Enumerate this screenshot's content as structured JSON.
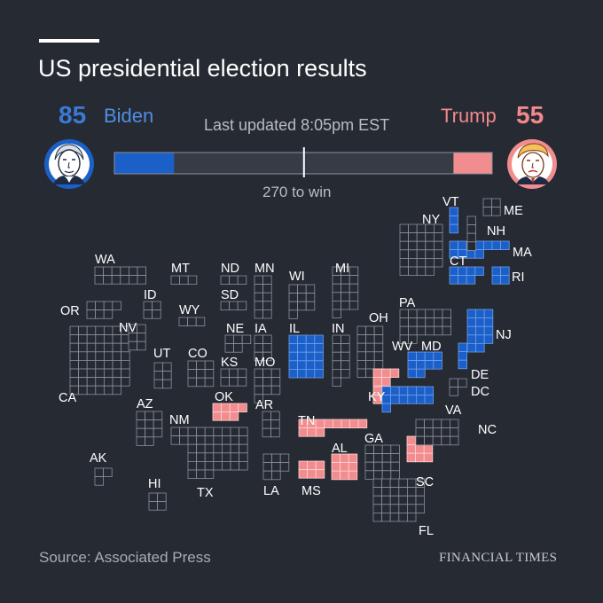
{
  "header": {
    "title": "US presidential election results",
    "last_updated": "Last updated 8:05pm EST",
    "to_win_label": "270 to win"
  },
  "candidates": {
    "biden": {
      "name": "Biden",
      "votes": 85,
      "color": "#1b5fc8",
      "avatar": "biden-portrait-icon"
    },
    "trump": {
      "name": "Trump",
      "votes": 55,
      "color": "#f28d8f",
      "avatar": "trump-portrait-icon"
    }
  },
  "footer": {
    "source": "Source: Associated Press",
    "brand": "FINANCIAL TIMES"
  },
  "chart_data": {
    "type": "grid-map",
    "total_votes": 538,
    "to_win": 270,
    "biden_total": 85,
    "trump_total": 55,
    "colors": {
      "biden": "#1b5fc8",
      "trump": "#f28d8f",
      "pending": "#262a33",
      "outline": "#8b909b",
      "bar_bg": "#363b46"
    },
    "states": [
      {
        "abbr": "WA",
        "votes": 12,
        "result": "pending"
      },
      {
        "abbr": "OR",
        "votes": 7,
        "result": "pending"
      },
      {
        "abbr": "CA",
        "votes": 55,
        "result": "pending"
      },
      {
        "abbr": "NV",
        "votes": 6,
        "result": "pending"
      },
      {
        "abbr": "ID",
        "votes": 4,
        "result": "pending"
      },
      {
        "abbr": "MT",
        "votes": 3,
        "result": "pending"
      },
      {
        "abbr": "WY",
        "votes": 3,
        "result": "pending"
      },
      {
        "abbr": "UT",
        "votes": 6,
        "result": "pending"
      },
      {
        "abbr": "CO",
        "votes": 9,
        "result": "pending"
      },
      {
        "abbr": "AZ",
        "votes": 11,
        "result": "pending"
      },
      {
        "abbr": "NM",
        "votes": 5,
        "result": "pending"
      },
      {
        "abbr": "ND",
        "votes": 3,
        "result": "pending"
      },
      {
        "abbr": "SD",
        "votes": 3,
        "result": "pending"
      },
      {
        "abbr": "NE",
        "votes": 5,
        "result": "pending"
      },
      {
        "abbr": "KS",
        "votes": 6,
        "result": "pending"
      },
      {
        "abbr": "OK",
        "votes": 7,
        "result": "trump"
      },
      {
        "abbr": "TX",
        "votes": 38,
        "result": "pending"
      },
      {
        "abbr": "MN",
        "votes": 10,
        "result": "pending"
      },
      {
        "abbr": "IA",
        "votes": 6,
        "result": "pending"
      },
      {
        "abbr": "MO",
        "votes": 10,
        "result": "pending"
      },
      {
        "abbr": "AR",
        "votes": 6,
        "result": "pending"
      },
      {
        "abbr": "LA",
        "votes": 8,
        "result": "pending"
      },
      {
        "abbr": "WI",
        "votes": 10,
        "result": "pending"
      },
      {
        "abbr": "IL",
        "votes": 20,
        "result": "biden"
      },
      {
        "abbr": "MI",
        "votes": 16,
        "result": "pending"
      },
      {
        "abbr": "IN",
        "votes": 11,
        "result": "pending"
      },
      {
        "abbr": "OH",
        "votes": 18,
        "result": "pending"
      },
      {
        "abbr": "KY",
        "votes": 8,
        "result": "trump"
      },
      {
        "abbr": "TN",
        "votes": 11,
        "result": "trump"
      },
      {
        "abbr": "MS",
        "votes": 6,
        "result": "trump"
      },
      {
        "abbr": "AL",
        "votes": 9,
        "result": "trump"
      },
      {
        "abbr": "GA",
        "votes": 16,
        "result": "pending"
      },
      {
        "abbr": "FL",
        "votes": 29,
        "result": "pending"
      },
      {
        "abbr": "SC",
        "votes": 9,
        "result": "trump"
      },
      {
        "abbr": "NC",
        "votes": 15,
        "result": "pending"
      },
      {
        "abbr": "VA",
        "votes": 13,
        "result": "biden"
      },
      {
        "abbr": "WV",
        "votes": 5,
        "result": "trump"
      },
      {
        "abbr": "PA",
        "votes": 20,
        "result": "pending"
      },
      {
        "abbr": "NY",
        "votes": 29,
        "result": "pending"
      },
      {
        "abbr": "NJ",
        "votes": 14,
        "result": "biden"
      },
      {
        "abbr": "DE",
        "votes": 3,
        "result": "biden"
      },
      {
        "abbr": "MD",
        "votes": 10,
        "result": "biden"
      },
      {
        "abbr": "DC",
        "votes": 3,
        "result": "pending"
      },
      {
        "abbr": "CT",
        "votes": 7,
        "result": "biden"
      },
      {
        "abbr": "RI",
        "votes": 4,
        "result": "biden"
      },
      {
        "abbr": "MA",
        "votes": 11,
        "result": "biden"
      },
      {
        "abbr": "VT",
        "votes": 3,
        "result": "biden"
      },
      {
        "abbr": "NH",
        "votes": 4,
        "result": "pending"
      },
      {
        "abbr": "ME",
        "votes": 4,
        "result": "pending"
      },
      {
        "abbr": "AK",
        "votes": 3,
        "result": "pending"
      },
      {
        "abbr": "HI",
        "votes": 4,
        "result": "pending"
      }
    ]
  }
}
